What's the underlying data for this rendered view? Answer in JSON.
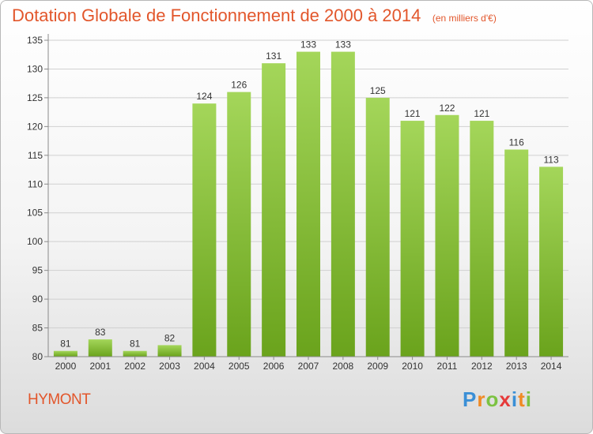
{
  "title": "Dotation Globale de Fonctionnement de 2000 à 2014",
  "unit_label": "(en milliers d'€)",
  "commune": "HYMONT",
  "logo": {
    "letters": [
      "P",
      "r",
      "o",
      "x",
      "i",
      "t",
      "i"
    ],
    "colors": [
      "#3a8fd6",
      "#f08a24",
      "#7cc242",
      "#e63a3a",
      "#3a8fd6",
      "#f08a24",
      "#7cc242"
    ]
  },
  "colors": {
    "title": "#e2562b",
    "bar_light": "#a4d65a",
    "bar_dark": "#6aa31c",
    "axis": "#8a8a8a",
    "grid": "#d0d0d0",
    "label": "#333333"
  },
  "chart_data": {
    "type": "bar",
    "categories": [
      "2000",
      "2001",
      "2002",
      "2003",
      "2004",
      "2005",
      "2006",
      "2007",
      "2008",
      "2009",
      "2010",
      "2011",
      "2012",
      "2013",
      "2014"
    ],
    "values": [
      81,
      83,
      81,
      82,
      124,
      126,
      131,
      133,
      133,
      125,
      121,
      122,
      121,
      116,
      113
    ],
    "ylim": [
      80,
      135
    ],
    "yticks": [
      80,
      85,
      90,
      95,
      100,
      105,
      110,
      115,
      120,
      125,
      130,
      135
    ],
    "xlabel": "",
    "ylabel": "",
    "grid": true
  }
}
